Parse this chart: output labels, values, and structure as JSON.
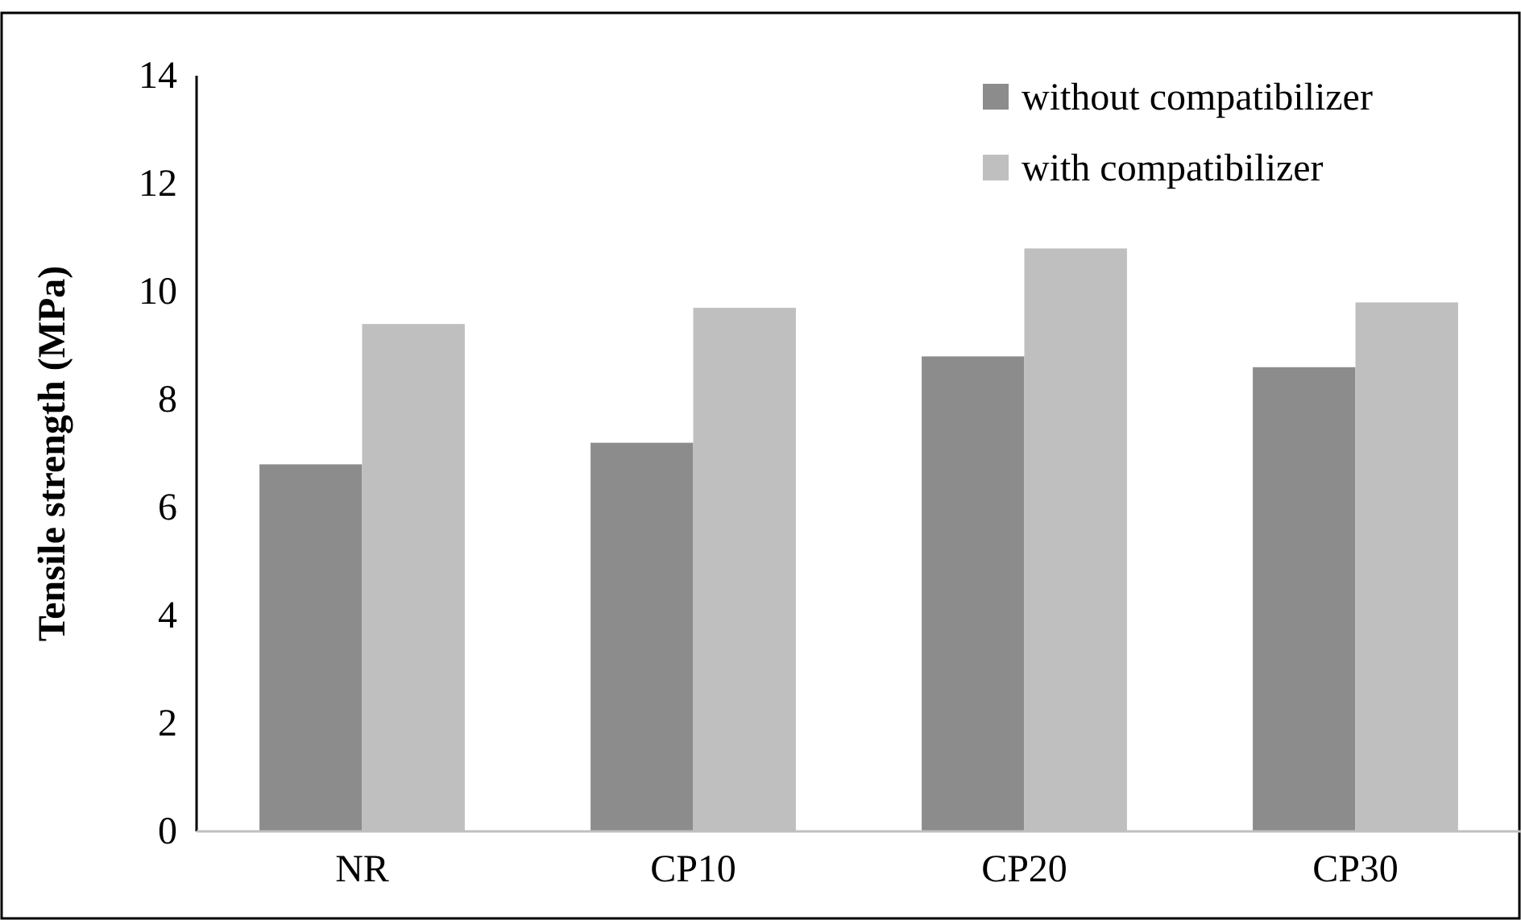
{
  "chart_data": {
    "type": "bar",
    "ylabel": "Tensile strength (MPa)",
    "categories": [
      "NR",
      "CP10",
      "CP20",
      "CP30"
    ],
    "series": [
      {
        "name": "without compatibilizer",
        "color": "#8c8c8c",
        "values": [
          6.8,
          7.2,
          8.8,
          8.6
        ]
      },
      {
        "name": "with compatibilizer",
        "color": "#bfbfbf",
        "values": [
          9.4,
          9.7,
          10.8,
          9.8
        ]
      }
    ],
    "ylim": [
      0,
      14
    ],
    "yticks": [
      0,
      2,
      4,
      6,
      8,
      10,
      12,
      14
    ],
    "grid": false,
    "legend": "top right"
  }
}
